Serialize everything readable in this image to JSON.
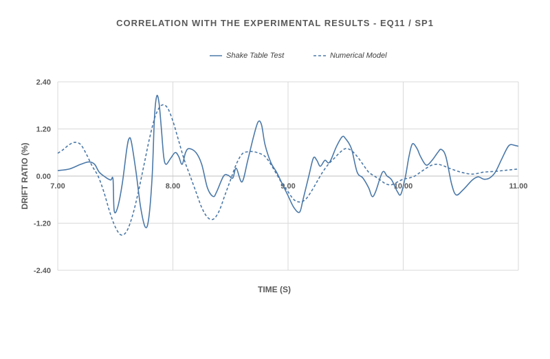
{
  "chart_data": {
    "type": "line",
    "title": "CORRELATION WITH THE EXPERIMENTAL RESULTS - EQ11 / SP1",
    "xlabel": "TIME (S)",
    "ylabel": "DRIFT RATIO (%)",
    "xlim": [
      7.0,
      11.0
    ],
    "ylim": [
      -2.4,
      2.4
    ],
    "x_ticks": [
      "7.00",
      "8.00",
      "9.00",
      "10.00",
      "11.00"
    ],
    "y_ticks": [
      "2.40",
      "1.20",
      "0.00",
      "-1.20",
      "-2.40"
    ],
    "grid": true,
    "legend_position": "top",
    "series": [
      {
        "name": "Shake Table Test",
        "style": "solid",
        "color": "#4a78a8",
        "points": [
          [
            7.0,
            0.14
          ],
          [
            7.1,
            0.18
          ],
          [
            7.2,
            0.3
          ],
          [
            7.27,
            0.36
          ],
          [
            7.32,
            0.3
          ],
          [
            7.36,
            0.1
          ],
          [
            7.42,
            -0.04
          ],
          [
            7.46,
            -0.1
          ],
          [
            7.48,
            -0.08
          ],
          [
            7.49,
            -0.88
          ],
          [
            7.52,
            -0.8
          ],
          [
            7.56,
            -0.2
          ],
          [
            7.6,
            0.7
          ],
          [
            7.62,
            0.96
          ],
          [
            7.64,
            0.86
          ],
          [
            7.68,
            0.1
          ],
          [
            7.72,
            -0.8
          ],
          [
            7.76,
            -1.3
          ],
          [
            7.79,
            -1.08
          ],
          [
            7.82,
            0.0
          ],
          [
            7.84,
            1.5
          ],
          [
            7.86,
            2.04
          ],
          [
            7.88,
            1.85
          ],
          [
            7.9,
            1.2
          ],
          [
            7.92,
            0.5
          ],
          [
            7.94,
            0.3
          ],
          [
            7.98,
            0.45
          ],
          [
            8.02,
            0.6
          ],
          [
            8.05,
            0.5
          ],
          [
            8.08,
            0.3
          ],
          [
            8.11,
            0.6
          ],
          [
            8.14,
            0.7
          ],
          [
            8.2,
            0.6
          ],
          [
            8.25,
            0.3
          ],
          [
            8.3,
            -0.3
          ],
          [
            8.35,
            -0.52
          ],
          [
            8.38,
            -0.4
          ],
          [
            8.44,
            0.0
          ],
          [
            8.48,
            0.02
          ],
          [
            8.52,
            -0.05
          ],
          [
            8.55,
            0.2
          ],
          [
            8.6,
            -0.15
          ],
          [
            8.65,
            0.4
          ],
          [
            8.7,
            1.0
          ],
          [
            8.74,
            1.38
          ],
          [
            8.77,
            1.3
          ],
          [
            8.8,
            0.8
          ],
          [
            8.85,
            0.35
          ],
          [
            8.9,
            0.1
          ],
          [
            8.95,
            -0.2
          ],
          [
            9.0,
            -0.5
          ],
          [
            9.05,
            -0.8
          ],
          [
            9.1,
            -0.92
          ],
          [
            9.13,
            -0.6
          ],
          [
            9.18,
            0.0
          ],
          [
            9.22,
            0.46
          ],
          [
            9.25,
            0.4
          ],
          [
            9.28,
            0.25
          ],
          [
            9.32,
            0.4
          ],
          [
            9.36,
            0.35
          ],
          [
            9.42,
            0.75
          ],
          [
            9.47,
            1.0
          ],
          [
            9.5,
            0.95
          ],
          [
            9.55,
            0.7
          ],
          [
            9.6,
            0.1
          ],
          [
            9.65,
            -0.05
          ],
          [
            9.7,
            -0.3
          ],
          [
            9.73,
            -0.52
          ],
          [
            9.76,
            -0.4
          ],
          [
            9.82,
            0.1
          ],
          [
            9.86,
            0.0
          ],
          [
            9.9,
            -0.1
          ],
          [
            9.95,
            -0.4
          ],
          [
            9.98,
            -0.46
          ],
          [
            10.02,
            0.0
          ],
          [
            10.05,
            0.5
          ],
          [
            10.08,
            0.82
          ],
          [
            10.12,
            0.7
          ],
          [
            10.15,
            0.5
          ],
          [
            10.2,
            0.28
          ],
          [
            10.25,
            0.4
          ],
          [
            10.3,
            0.6
          ],
          [
            10.33,
            0.68
          ],
          [
            10.37,
            0.5
          ],
          [
            10.42,
            -0.2
          ],
          [
            10.46,
            -0.48
          ],
          [
            10.52,
            -0.35
          ],
          [
            10.6,
            -0.1
          ],
          [
            10.65,
            -0.02
          ],
          [
            10.7,
            -0.08
          ],
          [
            10.75,
            -0.05
          ],
          [
            10.8,
            0.1
          ],
          [
            10.85,
            0.4
          ],
          [
            10.9,
            0.7
          ],
          [
            10.93,
            0.8
          ],
          [
            10.97,
            0.78
          ],
          [
            11.0,
            0.76
          ]
        ]
      },
      {
        "name": "Numerical Model",
        "style": "dashed",
        "color": "#4a78a8",
        "points": [
          [
            7.0,
            0.58
          ],
          [
            7.05,
            0.68
          ],
          [
            7.1,
            0.8
          ],
          [
            7.15,
            0.86
          ],
          [
            7.2,
            0.8
          ],
          [
            7.25,
            0.55
          ],
          [
            7.3,
            0.25
          ],
          [
            7.35,
            0.0
          ],
          [
            7.4,
            -0.4
          ],
          [
            7.45,
            -0.9
          ],
          [
            7.5,
            -1.3
          ],
          [
            7.55,
            -1.5
          ],
          [
            7.6,
            -1.4
          ],
          [
            7.65,
            -1.0
          ],
          [
            7.7,
            -0.4
          ],
          [
            7.75,
            0.3
          ],
          [
            7.8,
            1.0
          ],
          [
            7.85,
            1.55
          ],
          [
            7.9,
            1.8
          ],
          [
            7.95,
            1.75
          ],
          [
            8.0,
            1.4
          ],
          [
            8.05,
            0.9
          ],
          [
            8.1,
            0.4
          ],
          [
            8.15,
            0.0
          ],
          [
            8.2,
            -0.4
          ],
          [
            8.25,
            -0.8
          ],
          [
            8.3,
            -1.05
          ],
          [
            8.35,
            -1.1
          ],
          [
            8.4,
            -0.9
          ],
          [
            8.45,
            -0.5
          ],
          [
            8.5,
            -0.1
          ],
          [
            8.55,
            0.3
          ],
          [
            8.6,
            0.56
          ],
          [
            8.65,
            0.62
          ],
          [
            8.7,
            0.62
          ],
          [
            8.75,
            0.58
          ],
          [
            8.8,
            0.5
          ],
          [
            8.85,
            0.3
          ],
          [
            8.9,
            0.05
          ],
          [
            8.95,
            -0.2
          ],
          [
            9.0,
            -0.4
          ],
          [
            9.05,
            -0.6
          ],
          [
            9.1,
            -0.66
          ],
          [
            9.15,
            -0.6
          ],
          [
            9.2,
            -0.4
          ],
          [
            9.25,
            -0.15
          ],
          [
            9.3,
            0.1
          ],
          [
            9.35,
            0.3
          ],
          [
            9.4,
            0.45
          ],
          [
            9.45,
            0.6
          ],
          [
            9.5,
            0.7
          ],
          [
            9.55,
            0.65
          ],
          [
            9.6,
            0.5
          ],
          [
            9.65,
            0.3
          ],
          [
            9.7,
            0.1
          ],
          [
            9.75,
            0.0
          ],
          [
            9.8,
            -0.1
          ],
          [
            9.85,
            -0.2
          ],
          [
            9.9,
            -0.22
          ],
          [
            9.95,
            -0.15
          ],
          [
            10.0,
            -0.08
          ],
          [
            10.05,
            -0.05
          ],
          [
            10.1,
            0.0
          ],
          [
            10.15,
            0.1
          ],
          [
            10.2,
            0.2
          ],
          [
            10.25,
            0.28
          ],
          [
            10.3,
            0.3
          ],
          [
            10.35,
            0.26
          ],
          [
            10.4,
            0.2
          ],
          [
            10.5,
            0.1
          ],
          [
            10.6,
            0.05
          ],
          [
            10.7,
            0.1
          ],
          [
            10.8,
            0.12
          ],
          [
            10.9,
            0.15
          ],
          [
            11.0,
            0.18
          ]
        ]
      }
    ]
  }
}
